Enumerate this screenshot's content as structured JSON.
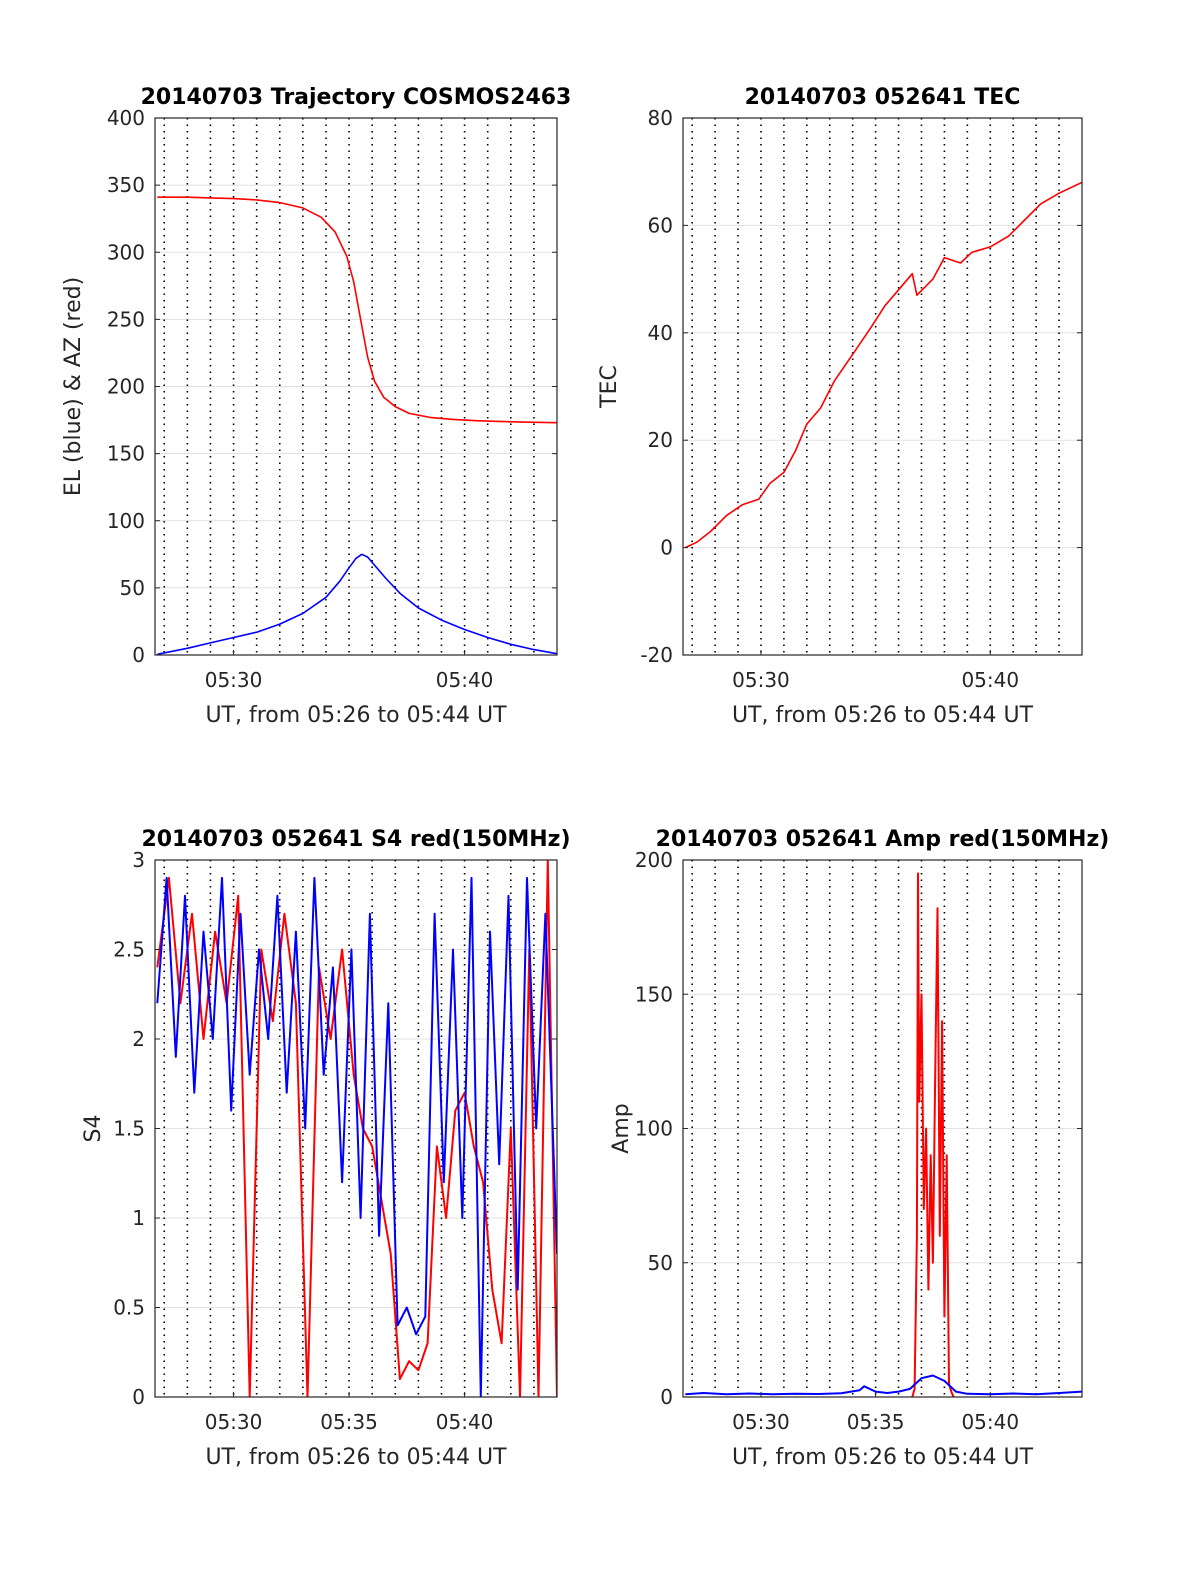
{
  "chart_data": [
    {
      "type": "line",
      "title": "20140703 Trajectory COSMOS2463",
      "xlabel": "UT, from 05:26 to 05:44 UT",
      "ylabel": "EL (blue) & AZ (red)",
      "xlim_minutes": [
        26.6,
        44
      ],
      "ylim": [
        0,
        400
      ],
      "yticks": [
        0,
        50,
        100,
        150,
        200,
        250,
        300,
        350,
        400
      ],
      "xticks": [
        {
          "m": 30,
          "label": "05:30"
        },
        {
          "m": 40,
          "label": "05:40"
        }
      ],
      "minute_gridlines": [
        27,
        28,
        29,
        30,
        31,
        32,
        33,
        34,
        35,
        36,
        37,
        38,
        39,
        40,
        41,
        42,
        43
      ],
      "grid": true,
      "series": [
        {
          "name": "AZ (red)",
          "color": "#ff0000",
          "x": [
            26.7,
            28,
            29,
            30,
            31,
            32,
            33,
            33.8,
            34.4,
            34.9,
            35.2,
            35.5,
            35.8,
            36.1,
            36.5,
            37,
            37.6,
            38.5,
            39.5,
            40.5,
            41.5,
            42.5,
            44
          ],
          "y": [
            341,
            341,
            340.5,
            340,
            339,
            337,
            333,
            326,
            315,
            297,
            278,
            250,
            222,
            204,
            192,
            185,
            180,
            177,
            175.5,
            174.5,
            174,
            173.5,
            173
          ]
        },
        {
          "name": "EL (blue)",
          "color": "#0000ff",
          "x": [
            26.7,
            28,
            29,
            30,
            31,
            32,
            33,
            34,
            34.6,
            35,
            35.3,
            35.55,
            35.8,
            36.1,
            36.6,
            37.2,
            38,
            39,
            40,
            41,
            42,
            43,
            44
          ],
          "y": [
            0.5,
            5,
            9,
            13,
            17,
            23,
            31,
            43,
            55,
            65,
            72,
            75,
            73,
            67,
            57,
            46,
            35,
            26,
            19,
            13,
            8,
            4,
            1
          ]
        }
      ]
    },
    {
      "type": "line",
      "title": "20140703 052641 TEC",
      "xlabel": "UT, from 05:26 to 05:44 UT",
      "ylabel": "TEC",
      "xlim_minutes": [
        26.6,
        44
      ],
      "ylim": [
        -20,
        80
      ],
      "yticks": [
        -20,
        0,
        20,
        40,
        60,
        80
      ],
      "xticks": [
        {
          "m": 30,
          "label": "05:30"
        },
        {
          "m": 40,
          "label": "05:40"
        }
      ],
      "minute_gridlines": [
        27,
        28,
        29,
        30,
        31,
        32,
        33,
        34,
        35,
        36,
        37,
        38,
        39,
        40,
        41,
        42,
        43
      ],
      "grid": true,
      "series": [
        {
          "name": "TEC",
          "color": "#ff0000",
          "x": [
            26.7,
            27.2,
            27.8,
            28.5,
            29.2,
            29.9,
            30.4,
            31,
            31.5,
            32,
            32.6,
            33.2,
            34,
            34.8,
            35.4,
            36,
            36.6,
            36.8,
            37.5,
            38,
            38.7,
            39.2,
            40,
            40.8,
            41.5,
            42.2,
            43,
            44
          ],
          "y": [
            0,
            1,
            3,
            6,
            8,
            9,
            12,
            14,
            18,
            23,
            26,
            31,
            36,
            41,
            45,
            48,
            51,
            47,
            50,
            54,
            53,
            55,
            56,
            58,
            61,
            64,
            66,
            68
          ]
        }
      ]
    },
    {
      "type": "line",
      "title": "20140703 052641 S4 red(150MHz)",
      "xlabel": "UT, from 05:26 to 05:44 UT",
      "ylabel": "S4",
      "xlim_minutes": [
        26.6,
        44
      ],
      "ylim": [
        0,
        3
      ],
      "yticks": [
        0,
        0.5,
        1,
        1.5,
        2,
        2.5,
        3
      ],
      "ytick_labels": [
        "0",
        "0.5",
        "1",
        "1.5",
        "2",
        "2.5",
        "3"
      ],
      "xticks": [
        {
          "m": 30,
          "label": "05:30"
        },
        {
          "m": 35,
          "label": "05:35"
        },
        {
          "m": 40,
          "label": "05:40"
        }
      ],
      "minute_gridlines": [
        27,
        28,
        29,
        30,
        31,
        32,
        33,
        34,
        35,
        36,
        37,
        38,
        39,
        40,
        41,
        42,
        43
      ],
      "grid": true,
      "series": [
        {
          "name": "red",
          "color": "#ff0000",
          "x": [
            26.7,
            27.2,
            27.7,
            28.2,
            28.7,
            29.2,
            29.7,
            30.2,
            30.7,
            31.2,
            31.7,
            32.2,
            32.7,
            33.2,
            33.7,
            34.2,
            34.7,
            35.2,
            35.6,
            36,
            36.4,
            36.8,
            37.2,
            37.6,
            38,
            38.4,
            38.8,
            39.2,
            39.6,
            40,
            40.4,
            40.8,
            41.2,
            41.6,
            42,
            42.4,
            42.8,
            43.2,
            43.6,
            44
          ],
          "y": [
            2.4,
            2.9,
            2.2,
            2.7,
            2.0,
            2.6,
            2.2,
            2.8,
            0,
            2.5,
            2.1,
            2.7,
            2.2,
            0,
            2.4,
            2.0,
            2.5,
            1.8,
            1.5,
            1.4,
            1.1,
            0.8,
            0.1,
            0.2,
            0.15,
            0.3,
            1.4,
            1.0,
            1.6,
            1.7,
            1.4,
            1.2,
            0.6,
            0.3,
            1.5,
            0,
            2.5,
            0,
            3,
            0
          ]
        },
        {
          "name": "blue",
          "color": "#0000ff",
          "x": [
            26.7,
            27.1,
            27.5,
            27.9,
            28.3,
            28.7,
            29.1,
            29.5,
            29.9,
            30.3,
            30.7,
            31.1,
            31.5,
            31.9,
            32.3,
            32.7,
            33.1,
            33.5,
            33.9,
            34.3,
            34.7,
            35.1,
            35.5,
            35.9,
            36.3,
            36.7,
            37.1,
            37.5,
            37.9,
            38.3,
            38.7,
            39.1,
            39.5,
            39.9,
            40.3,
            40.7,
            41.1,
            41.5,
            41.9,
            42.3,
            42.7,
            43.1,
            43.5,
            44
          ],
          "y": [
            2.2,
            2.9,
            1.9,
            2.8,
            1.7,
            2.6,
            2.0,
            2.9,
            1.6,
            2.7,
            1.8,
            2.5,
            2.0,
            2.8,
            1.7,
            2.6,
            1.5,
            2.9,
            1.8,
            2.4,
            1.2,
            2.5,
            1.0,
            2.7,
            0.9,
            2.2,
            0.4,
            0.5,
            0.35,
            0.45,
            2.7,
            1.2,
            2.5,
            1.0,
            2.9,
            0,
            2.6,
            1.3,
            2.8,
            0.6,
            2.9,
            1.5,
            2.7,
            0.8
          ]
        }
      ]
    },
    {
      "type": "line",
      "title": "20140703 052641 Amp red(150MHz)",
      "xlabel": "UT, from 05:26 to 05:44 UT",
      "ylabel": "Amp",
      "xlim_minutes": [
        26.6,
        44
      ],
      "ylim": [
        0,
        200
      ],
      "yticks": [
        0,
        50,
        100,
        150,
        200
      ],
      "xticks": [
        {
          "m": 30,
          "label": "05:30"
        },
        {
          "m": 35,
          "label": "05:35"
        },
        {
          "m": 40,
          "label": "05:40"
        }
      ],
      "minute_gridlines": [
        27,
        28,
        29,
        30,
        31,
        32,
        33,
        34,
        35,
        36,
        37,
        38,
        39,
        40,
        41,
        42,
        43
      ],
      "grid": true,
      "series": [
        {
          "name": "red",
          "color": "#ff0000",
          "x": [
            36.6,
            36.7,
            36.8,
            36.85,
            36.9,
            37.0,
            37.1,
            37.2,
            37.3,
            37.4,
            37.5,
            37.6,
            37.7,
            37.8,
            37.9,
            38.0,
            38.1,
            38.2,
            38.3,
            38.4
          ],
          "y": [
            0,
            3,
            60,
            195,
            110,
            150,
            70,
            100,
            40,
            90,
            50,
            120,
            182,
            60,
            140,
            30,
            90,
            5,
            2,
            0
          ]
        },
        {
          "name": "blue",
          "color": "#0000ff",
          "x": [
            26.7,
            27.5,
            28.5,
            29.5,
            30.5,
            31.5,
            32.5,
            33.5,
            34.3,
            34.5,
            35,
            35.5,
            36,
            36.5,
            37,
            37.5,
            38,
            38.5,
            39,
            40,
            41,
            42,
            43,
            44
          ],
          "y": [
            1,
            1.5,
            1,
            1.3,
            1,
            1.2,
            1.1,
            1.4,
            2.5,
            4,
            2,
            1.5,
            2,
            3,
            7,
            8,
            6,
            2,
            1.2,
            1,
            1.3,
            1,
            1.5,
            2
          ]
        }
      ]
    }
  ]
}
